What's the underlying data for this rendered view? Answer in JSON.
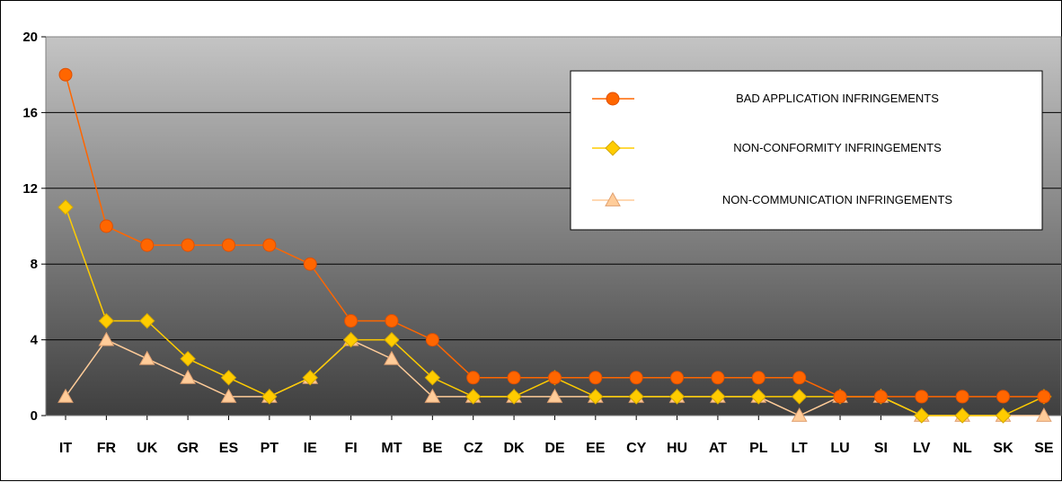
{
  "chart_data": {
    "type": "line",
    "categories": [
      "IT",
      "FR",
      "UK",
      "GR",
      "ES",
      "PT",
      "IE",
      "FI",
      "MT",
      "BE",
      "CZ",
      "DK",
      "DE",
      "EE",
      "CY",
      "HU",
      "AT",
      "PL",
      "LT",
      "LU",
      "SI",
      "LV",
      "NL",
      "SK",
      "SE"
    ],
    "series": [
      {
        "name": "BAD APPLICATION INFRINGEMENTS",
        "color": "#ff6600",
        "marker": "circle",
        "values": [
          18,
          10,
          9,
          9,
          9,
          9,
          8,
          5,
          5,
          4,
          2,
          2,
          2,
          2,
          2,
          2,
          2,
          2,
          2,
          1,
          1,
          1,
          1,
          1,
          1
        ]
      },
      {
        "name": "NON-CONFORMITY INFRINGEMENTS",
        "color": "#ffcc00",
        "marker": "diamond",
        "values": [
          11,
          5,
          5,
          3,
          2,
          1,
          2,
          4,
          4,
          2,
          1,
          1,
          2,
          1,
          1,
          1,
          1,
          1,
          1,
          1,
          1,
          0,
          0,
          0,
          1
        ]
      },
      {
        "name": "NON-COMMUNICATION INFRINGEMENTS",
        "color": "#ffcc99",
        "marker": "triangle",
        "values": [
          1,
          4,
          3,
          2,
          1,
          1,
          2,
          4,
          3,
          1,
          1,
          1,
          1,
          1,
          1,
          1,
          1,
          1,
          0,
          1,
          1,
          0,
          0,
          0,
          0
        ]
      }
    ],
    "yticks": [
      0,
      4,
      8,
      12,
      16,
      20
    ],
    "ylim": [
      0,
      20
    ],
    "grid": true,
    "legend_position": "top-right",
    "title": "",
    "xlabel": "",
    "ylabel": ""
  }
}
